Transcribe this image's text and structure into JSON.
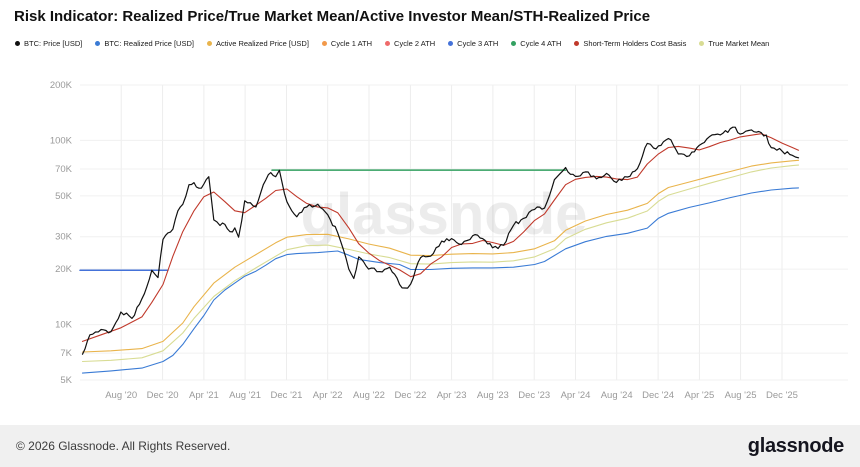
{
  "title": "Risk Indicator: Realized Price/True Market Mean/Active Investor Mean/STH-Realized Price",
  "watermark": "glassnode",
  "footer": {
    "copyright": "© 2026 Glassnode. All Rights Reserved.",
    "brand": "glassnode"
  },
  "legend": [
    {
      "label": "BTC: Price [USD]",
      "color": "#111111"
    },
    {
      "label": "BTC: Realized Price [USD]",
      "color": "#3a7bd5"
    },
    {
      "label": "Active Realized Price [USD]",
      "color": "#e9b44c"
    },
    {
      "label": "Cycle 1 ATH",
      "color": "#f2994a"
    },
    {
      "label": "Cycle 2 ATH",
      "color": "#ef6a6a"
    },
    {
      "label": "Cycle 3 ATH",
      "color": "#4472d9"
    },
    {
      "label": "Cycle 4 ATH",
      "color": "#33a161"
    },
    {
      "label": "Short-Term Holders Cost Basis",
      "color": "#c0392b"
    },
    {
      "label": "True Market Mean",
      "color": "#d8dc94"
    }
  ],
  "chart_data": {
    "type": "line",
    "title": "Risk Indicator: Realized Price/True Market Mean/Active Investor Mean/STH-Realized Price",
    "legend_position": "top",
    "grid": true,
    "x_axis": {
      "ticks": [
        "Aug '20",
        "Dec '20",
        "Apr '21",
        "Aug '21",
        "Dec '21",
        "Apr '22",
        "Aug '22",
        "Dec '22",
        "Apr '23",
        "Aug '23",
        "Dec '23",
        "Apr '24",
        "Aug '24",
        "Dec '24",
        "Apr '25",
        "Aug '25",
        "Dec '25"
      ],
      "tick_values": [
        2020.583,
        2020.917,
        2021.25,
        2021.583,
        2021.917,
        2022.25,
        2022.583,
        2022.917,
        2023.25,
        2023.583,
        2023.917,
        2024.25,
        2024.583,
        2024.917,
        2025.25,
        2025.583,
        2025.917
      ],
      "range": [
        2020.25,
        2026.45
      ]
    },
    "y_axis": {
      "scale": "log",
      "ticks": [
        "5K",
        "7K",
        "10K",
        "20K",
        "30K",
        "50K",
        "70K",
        "100K",
        "200K"
      ],
      "tick_values": [
        5000,
        7000,
        10000,
        20000,
        30000,
        50000,
        70000,
        100000,
        200000
      ],
      "range": [
        5000,
        200000
      ]
    },
    "series": [
      {
        "name": "BTC: Price [USD]",
        "color": "#111111",
        "style": "noisy",
        "width": 1.2,
        "z": 9,
        "x": [
          2020.27,
          2020.33,
          2020.42,
          2020.5,
          2020.58,
          2020.67,
          2020.75,
          2020.83,
          2020.88,
          2020.92,
          2021.0,
          2021.04,
          2021.08,
          2021.13,
          2021.17,
          2021.21,
          2021.25,
          2021.29,
          2021.33,
          2021.38,
          2021.42,
          2021.46,
          2021.5,
          2021.53,
          2021.58,
          2021.67,
          2021.75,
          2021.79,
          2021.83,
          2021.86,
          2021.92,
          2022.0,
          2022.08,
          2022.17,
          2022.25,
          2022.33,
          2022.42,
          2022.46,
          2022.5,
          2022.58,
          2022.67,
          2022.75,
          2022.83,
          2022.87,
          2022.92,
          2023.0,
          2023.08,
          2023.17,
          2023.25,
          2023.33,
          2023.42,
          2023.5,
          2023.58,
          2023.67,
          2023.75,
          2023.83,
          2023.92,
          2024.0,
          2024.08,
          2024.17,
          2024.21,
          2024.25,
          2024.33,
          2024.42,
          2024.5,
          2024.58,
          2024.67,
          2024.75,
          2024.83,
          2024.88,
          2024.92,
          2025.0,
          2025.04,
          2025.08,
          2025.17,
          2025.25,
          2025.33,
          2025.42,
          2025.5,
          2025.54,
          2025.58,
          2025.67,
          2025.75,
          2025.79,
          2025.83,
          2025.92,
          2026.0,
          2026.05
        ],
        "y": [
          6900,
          8800,
          9400,
          9150,
          11700,
          10800,
          13800,
          19700,
          18000,
          29000,
          33000,
          41500,
          45000,
          57500,
          59000,
          55000,
          58000,
          63500,
          37000,
          34500,
          35000,
          32000,
          33500,
          29800,
          47000,
          43500,
          61000,
          66900,
          63500,
          68800,
          46500,
          38500,
          43500,
          45000,
          39500,
          31500,
          20000,
          17800,
          23300,
          20000,
          19400,
          20500,
          16500,
          15800,
          16600,
          23100,
          23500,
          28400,
          29300,
          27200,
          30400,
          29300,
          26100,
          27000,
          34600,
          37700,
          42200,
          42900,
          61200,
          71300,
          65500,
          63800,
          67500,
          61800,
          66200,
          59100,
          63300,
          70200,
          96400,
          91000,
          93400,
          102400,
          94500,
          84400,
          82500,
          94200,
          104600,
          107100,
          115800,
          118000,
          108200,
          114100,
          110100,
          107000,
          91400,
          87300,
          83000,
          80500
        ]
      },
      {
        "name": "BTC: Realized Price [USD]",
        "color": "#3a7bd5",
        "width": 1.1,
        "z": 6,
        "x": [
          2020.27,
          2020.5,
          2020.75,
          2020.92,
          2021.0,
          2021.08,
          2021.17,
          2021.25,
          2021.33,
          2021.42,
          2021.5,
          2021.58,
          2021.67,
          2021.75,
          2021.83,
          2021.92,
          2022.0,
          2022.17,
          2022.33,
          2022.42,
          2022.5,
          2022.67,
          2022.83,
          2022.92,
          2023.08,
          2023.25,
          2023.42,
          2023.58,
          2023.75,
          2023.92,
          2024.0,
          2024.17,
          2024.33,
          2024.5,
          2024.67,
          2024.83,
          2024.92,
          2025.0,
          2025.17,
          2025.33,
          2025.5,
          2025.67,
          2025.83,
          2026.0,
          2026.05
        ],
        "y": [
          5450,
          5600,
          5800,
          6300,
          6800,
          7800,
          9500,
          11200,
          13600,
          15400,
          16800,
          18300,
          19500,
          21000,
          22800,
          24000,
          24300,
          24600,
          25100,
          23800,
          22600,
          21700,
          21200,
          19900,
          19900,
          20200,
          20300,
          20300,
          20500,
          21200,
          22000,
          25800,
          28200,
          30100,
          31300,
          33400,
          37800,
          40200,
          43300,
          45800,
          48900,
          51800,
          53800,
          55000,
          55200
        ]
      },
      {
        "name": "Active Realized Price [USD]",
        "color": "#e9b44c",
        "width": 1.1,
        "z": 5,
        "x": [
          2020.27,
          2020.5,
          2020.75,
          2020.92,
          2021.08,
          2021.17,
          2021.33,
          2021.5,
          2021.67,
          2021.83,
          2021.92,
          2022.08,
          2022.25,
          2022.42,
          2022.58,
          2022.75,
          2022.92,
          2023.08,
          2023.25,
          2023.42,
          2023.58,
          2023.75,
          2023.92,
          2024.08,
          2024.17,
          2024.33,
          2024.5,
          2024.67,
          2024.83,
          2024.92,
          2025.0,
          2025.17,
          2025.33,
          2025.5,
          2025.67,
          2025.83,
          2026.0,
          2026.05
        ],
        "y": [
          7100,
          7200,
          7400,
          8100,
          10200,
          12500,
          16800,
          20500,
          24000,
          27800,
          29800,
          30800,
          30900,
          29200,
          27400,
          26000,
          23800,
          23700,
          24100,
          24300,
          24200,
          24600,
          25800,
          28500,
          32500,
          36500,
          39600,
          41800,
          45500,
          51500,
          55500,
          59500,
          63500,
          67800,
          72500,
          75500,
          77500,
          78000
        ]
      },
      {
        "name": "Cycle 1 ATH",
        "color": "#f2994a",
        "width": 1.5,
        "z": 1,
        "visible": false,
        "x": [],
        "y": []
      },
      {
        "name": "Cycle 2 ATH",
        "color": "#ef6a6a",
        "width": 1.5,
        "z": 1,
        "visible": false,
        "x": [],
        "y": []
      },
      {
        "name": "Cycle 3 ATH",
        "color": "#4472d9",
        "width": 1.5,
        "z": 3,
        "x": [
          2020.25,
          2020.96
        ],
        "y": [
          19700,
          19700
        ]
      },
      {
        "name": "Cycle 4 ATH",
        "color": "#33a161",
        "width": 1.5,
        "z": 3,
        "x": [
          2021.8,
          2024.17
        ],
        "y": [
          69000,
          69000
        ]
      },
      {
        "name": "Short-Term Holders Cost Basis",
        "color": "#c0392b",
        "width": 1.1,
        "z": 7,
        "x": [
          2020.27,
          2020.42,
          2020.58,
          2020.75,
          2020.83,
          2020.92,
          2021.0,
          2021.08,
          2021.17,
          2021.25,
          2021.33,
          2021.42,
          2021.5,
          2021.58,
          2021.67,
          2021.75,
          2021.83,
          2021.92,
          2022.0,
          2022.08,
          2022.17,
          2022.25,
          2022.33,
          2022.42,
          2022.5,
          2022.58,
          2022.67,
          2022.75,
          2022.83,
          2022.92,
          2023.0,
          2023.08,
          2023.17,
          2023.25,
          2023.33,
          2023.42,
          2023.5,
          2023.58,
          2023.67,
          2023.75,
          2023.83,
          2023.92,
          2024.0,
          2024.08,
          2024.17,
          2024.25,
          2024.33,
          2024.42,
          2024.5,
          2024.58,
          2024.67,
          2024.75,
          2024.83,
          2024.92,
          2025.0,
          2025.08,
          2025.17,
          2025.25,
          2025.33,
          2025.42,
          2025.5,
          2025.58,
          2025.67,
          2025.75,
          2025.83,
          2025.92,
          2026.0,
          2026.05
        ],
        "y": [
          8100,
          8800,
          9600,
          11000,
          13200,
          16500,
          23500,
          32000,
          41500,
          49500,
          52500,
          46500,
          41500,
          40500,
          44500,
          48500,
          53500,
          54500,
          49500,
          45500,
          43500,
          43000,
          40500,
          33500,
          27500,
          24500,
          22200,
          21000,
          19800,
          18200,
          18900,
          21300,
          23300,
          26200,
          27400,
          27600,
          28600,
          27900,
          26900,
          28300,
          31800,
          36800,
          39900,
          47500,
          57500,
          61500,
          63000,
          63800,
          63200,
          61800,
          61300,
          63200,
          74500,
          84500,
          91500,
          92800,
          90800,
          88800,
          92500,
          97500,
          100500,
          104500,
          106800,
          108800,
          103500,
          96500,
          91500,
          88500
        ]
      },
      {
        "name": "True Market Mean",
        "color": "#d8dc94",
        "width": 1.1,
        "z": 4,
        "x": [
          2020.27,
          2020.5,
          2020.75,
          2020.92,
          2021.08,
          2021.17,
          2021.33,
          2021.5,
          2021.67,
          2021.83,
          2021.92,
          2022.08,
          2022.25,
          2022.42,
          2022.58,
          2022.75,
          2022.92,
          2023.08,
          2023.25,
          2023.42,
          2023.58,
          2023.75,
          2023.92,
          2024.08,
          2024.17,
          2024.33,
          2024.5,
          2024.67,
          2024.83,
          2024.92,
          2025.0,
          2025.17,
          2025.33,
          2025.5,
          2025.67,
          2025.83,
          2026.0,
          2026.05
        ],
        "y": [
          6300,
          6400,
          6600,
          7200,
          9000,
          10800,
          14200,
          17300,
          20300,
          23500,
          25500,
          26800,
          27000,
          25600,
          24200,
          23100,
          21400,
          21300,
          21700,
          21900,
          21800,
          22200,
          23300,
          25800,
          29300,
          32900,
          35700,
          37800,
          41400,
          46800,
          50500,
          54500,
          58500,
          62800,
          67500,
          70800,
          73000,
          73500
        ]
      }
    ]
  }
}
